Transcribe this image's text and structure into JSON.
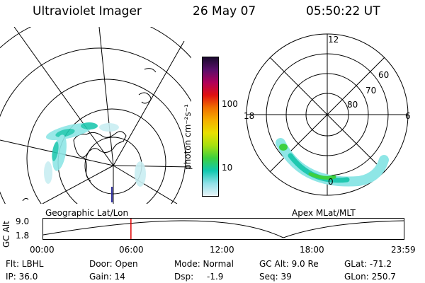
{
  "header": {
    "title": "Ultraviolet Imager",
    "date": "26 May 07",
    "time": "05:50:22 UT"
  },
  "colorbar": {
    "unit_label": "photon cm⁻²s⁻¹",
    "ticks": [
      "100",
      "10"
    ],
    "colors": [
      "#1a0a2e",
      "#5a0e6a",
      "#b0005a",
      "#e01010",
      "#f07000",
      "#f5b000",
      "#e8e000",
      "#a6e010",
      "#3cd040",
      "#10c8b0",
      "#90e0e8",
      "#e8f4f8"
    ]
  },
  "left_map": {
    "caption": "Geographic Lat/Lon"
  },
  "right_map": {
    "caption": "Apex MLat/MLT",
    "mlt_labels": [
      "12",
      "18",
      "6",
      "0"
    ],
    "lat_labels": [
      "60",
      "70",
      "80"
    ]
  },
  "timeline": {
    "ylabel": "GC Alt",
    "y_ticks": [
      "9.0",
      "1.8"
    ],
    "x_ticks": [
      "00:00",
      "06:00",
      "12:00",
      "18:00",
      "23:59"
    ],
    "current_time_hours": 5.84,
    "marker_color": "#e00000"
  },
  "info": {
    "row1": {
      "filter": "Flt: LBHL",
      "door": "Door: Open",
      "mode": "Mode: Normal",
      "gc_alt": "GC Alt: 9.0 Re",
      "glat": "GLat: -71.2"
    },
    "row2": {
      "ip": "IP: 36.0",
      "gain": "Gain: 14",
      "dsp_label": "Dsp:",
      "dsp_value": "-1.9",
      "seq": "Seq: 39",
      "glon": "GLon: 250.7"
    }
  }
}
